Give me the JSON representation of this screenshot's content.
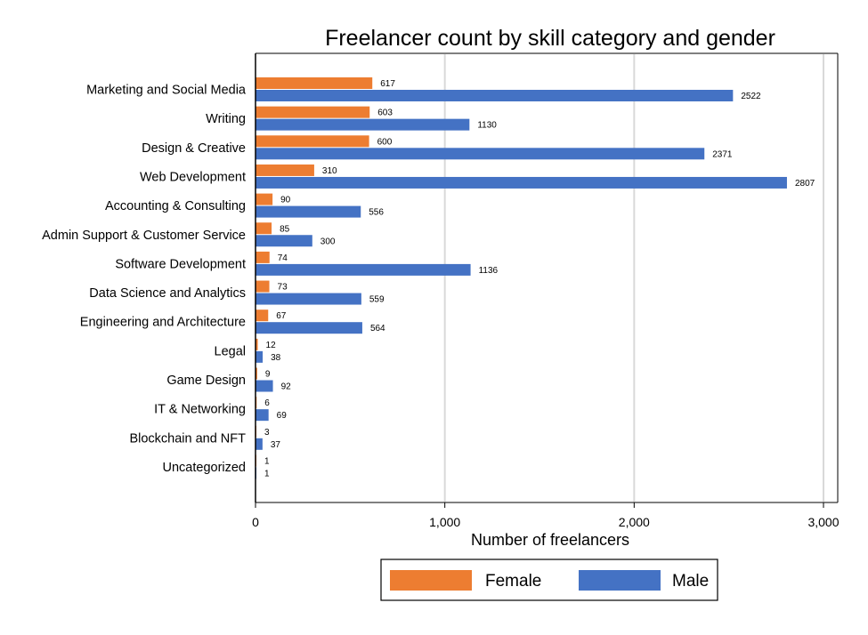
{
  "chart_data": {
    "type": "bar",
    "orientation": "horizontal",
    "title": "Freelancer count by skill category and gender",
    "xlabel": "Number of freelancers",
    "ylabel": "",
    "xlim": [
      0,
      3000
    ],
    "xticks": [
      0,
      1000,
      2000,
      3000
    ],
    "xtick_labels": [
      "0",
      "1,000",
      "2,000",
      "3,000"
    ],
    "grid": "vertical gridlines",
    "legend_position": "bottom",
    "categories": [
      "Marketing and Social Media",
      "Writing",
      "Design & Creative",
      "Web Development",
      "Accounting & Consulting",
      "Admin Support & Customer Service",
      "Software Development",
      "Data Science and Analytics",
      "Engineering and Architecture",
      "Legal",
      "Game Design",
      "IT & Networking",
      "Blockchain and NFT",
      "Uncategorized"
    ],
    "series": [
      {
        "name": "Female",
        "color": "#ED7D31",
        "values": [
          617,
          603,
          600,
          310,
          90,
          85,
          74,
          73,
          67,
          12,
          9,
          6,
          3,
          1
        ]
      },
      {
        "name": "Male",
        "color": "#4472C4",
        "values": [
          2522,
          1130,
          2371,
          2807,
          556,
          300,
          1136,
          559,
          564,
          38,
          92,
          69,
          37,
          1
        ]
      }
    ]
  }
}
